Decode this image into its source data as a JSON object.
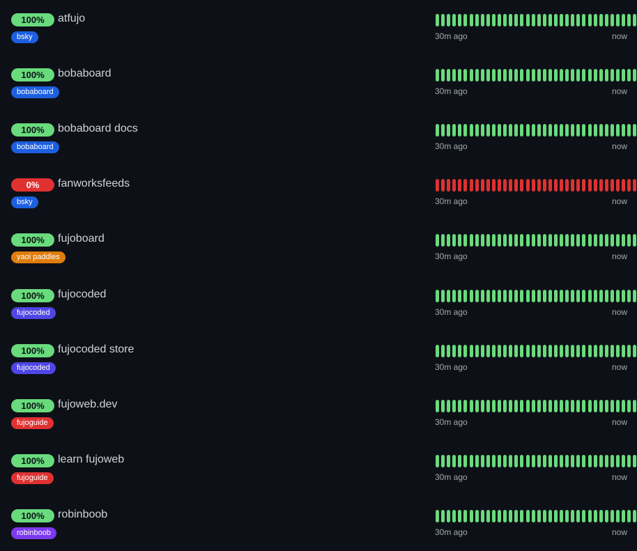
{
  "colors": {
    "background": "#0d1117",
    "up": "#69db7c",
    "down": "#e03131",
    "tag_blue": "#1c5fe0",
    "tag_orange": "#e07c0c",
    "tag_indigo": "#4f46e5",
    "tag_red": "#e03131",
    "tag_violet": "#7c3aed"
  },
  "timeline": {
    "start_label": "30m ago",
    "end_label": "now",
    "segments_per_row": 36
  },
  "monitors": [
    {
      "name": "atfujo",
      "uptime": "100%",
      "status": "up",
      "tag": "bsky",
      "tag_color": "#1c5fe0"
    },
    {
      "name": "bobaboard",
      "uptime": "100%",
      "status": "up",
      "tag": "bobaboard",
      "tag_color": "#1c5fe0"
    },
    {
      "name": "bobaboard docs",
      "uptime": "100%",
      "status": "up",
      "tag": "bobaboard",
      "tag_color": "#1c5fe0"
    },
    {
      "name": "fanworksfeeds",
      "uptime": "0%",
      "status": "down",
      "tag": "bsky",
      "tag_color": "#1c5fe0"
    },
    {
      "name": "fujoboard",
      "uptime": "100%",
      "status": "up",
      "tag": "yaoi paddles",
      "tag_color": "#e07c0c"
    },
    {
      "name": "fujocoded",
      "uptime": "100%",
      "status": "up",
      "tag": "fujocoded",
      "tag_color": "#4f46e5"
    },
    {
      "name": "fujocoded store",
      "uptime": "100%",
      "status": "up",
      "tag": "fujocoded",
      "tag_color": "#4f46e5"
    },
    {
      "name": "fujoweb.dev",
      "uptime": "100%",
      "status": "up",
      "tag": "fujoguide",
      "tag_color": "#e03131"
    },
    {
      "name": "learn fujoweb",
      "uptime": "100%",
      "status": "up",
      "tag": "fujoguide",
      "tag_color": "#e03131"
    },
    {
      "name": "robinboob",
      "uptime": "100%",
      "status": "up",
      "tag": "robinboob",
      "tag_color": "#7c3aed"
    }
  ]
}
